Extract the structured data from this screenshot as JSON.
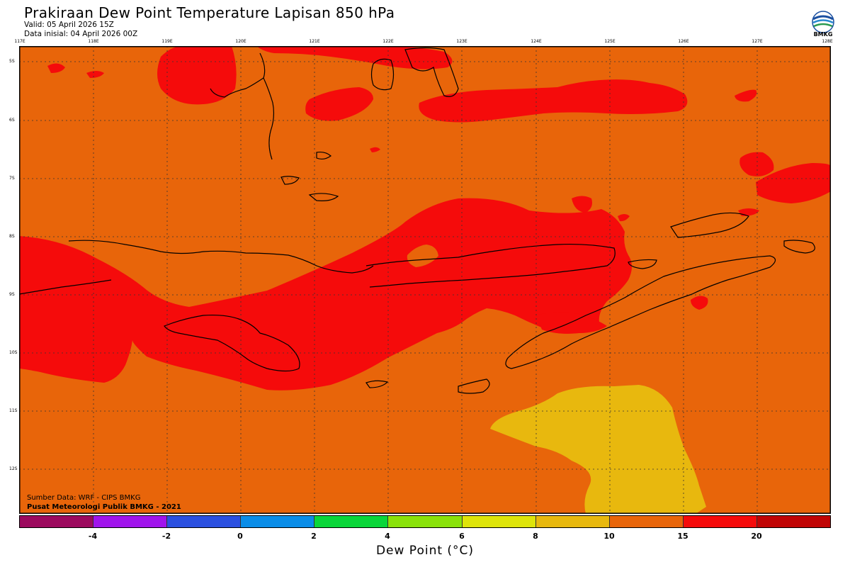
{
  "header": {
    "title": "Prakiraan Dew Point Temperature Lapisan 850 hPa",
    "valid": "Valid: 05 April 2026 15Z",
    "initial": "Data inisial: 04 April 2026 00Z"
  },
  "logo": {
    "text": "BMKG"
  },
  "map": {
    "lon_labels": [
      "117E",
      "118E",
      "119E",
      "120E",
      "121E",
      "122E",
      "123E",
      "124E",
      "125E",
      "126E",
      "127E",
      "128E"
    ],
    "lat_labels": [
      "5S",
      "6S",
      "7S",
      "8S",
      "9S",
      "10S",
      "11S",
      "12S"
    ],
    "colors": {
      "range_10_15": "#e8650a",
      "range_15_20": "#f50b0b",
      "range_8_10": "#e8b80e",
      "coastline": "#000000"
    }
  },
  "credits": {
    "source": "Sumber Data: WRF - CIPS BMKG",
    "org": "Pusat Meteorologi Publik BMKG - 2021"
  },
  "colorbar": {
    "colors": [
      "#9c0a5e",
      "#a014ec",
      "#2b50e0",
      "#0a8de8",
      "#0ad63a",
      "#8ae20a",
      "#dee40a",
      "#e8b80e",
      "#e8650a",
      "#f50b0b",
      "#c00505"
    ],
    "ticks": [
      "-4",
      "-2",
      "0",
      "2",
      "4",
      "6",
      "8",
      "10",
      "15",
      "20"
    ],
    "title": "Dew Point (°C)"
  }
}
